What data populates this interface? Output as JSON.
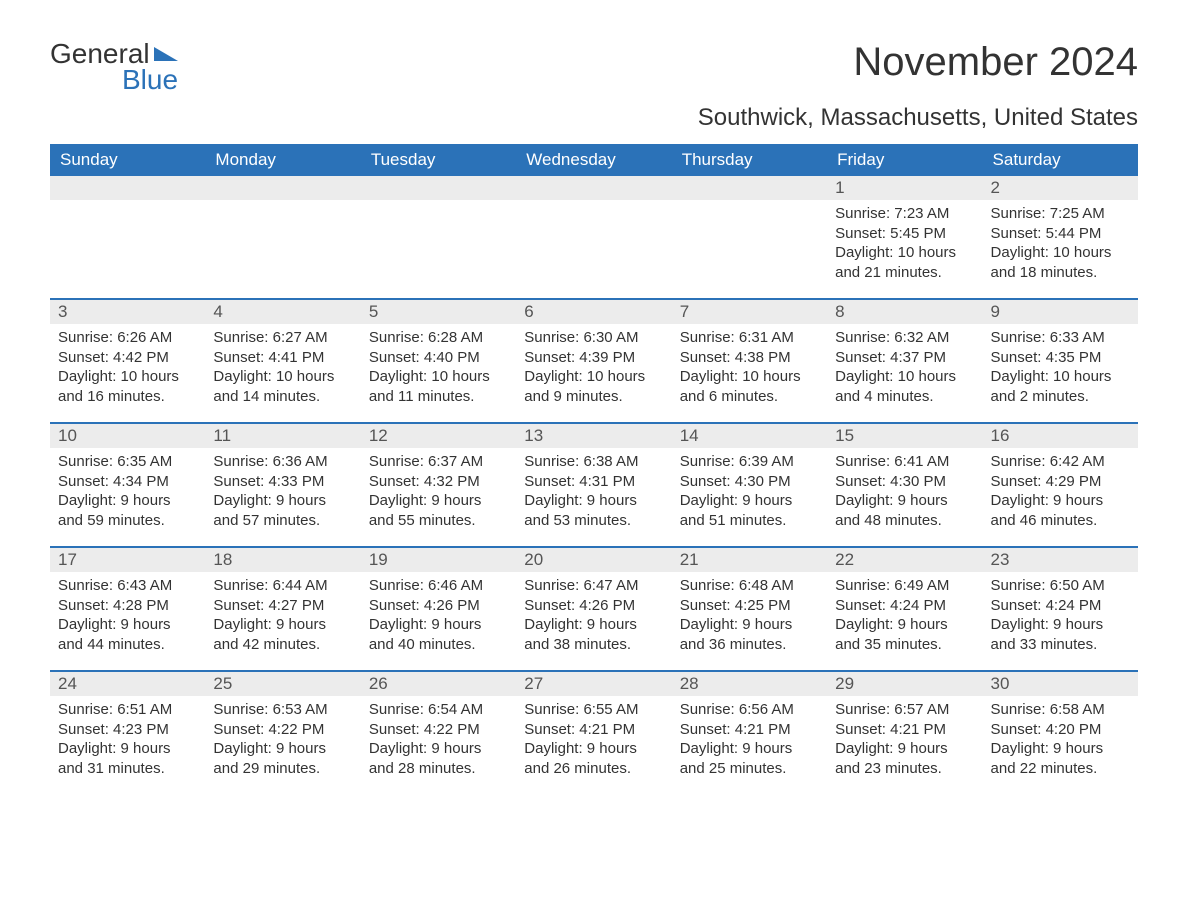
{
  "logo": {
    "word1": "General",
    "word2": "Blue"
  },
  "title": "November 2024",
  "location": "Southwick, Massachusetts, United States",
  "dayNames": [
    "Sunday",
    "Monday",
    "Tuesday",
    "Wednesday",
    "Thursday",
    "Friday",
    "Saturday"
  ],
  "colors": {
    "header_bg": "#2b72b8",
    "header_text": "#ffffff",
    "daynum_bg": "#ececec",
    "text": "#333333",
    "accent": "#2b72b8"
  },
  "weeks": [
    [
      {
        "blank": true
      },
      {
        "blank": true
      },
      {
        "blank": true
      },
      {
        "blank": true
      },
      {
        "blank": true
      },
      {
        "day": "1",
        "sunrise": "Sunrise: 7:23 AM",
        "sunset": "Sunset: 5:45 PM",
        "daylight1": "Daylight: 10 hours",
        "daylight2": "and 21 minutes."
      },
      {
        "day": "2",
        "sunrise": "Sunrise: 7:25 AM",
        "sunset": "Sunset: 5:44 PM",
        "daylight1": "Daylight: 10 hours",
        "daylight2": "and 18 minutes."
      }
    ],
    [
      {
        "day": "3",
        "sunrise": "Sunrise: 6:26 AM",
        "sunset": "Sunset: 4:42 PM",
        "daylight1": "Daylight: 10 hours",
        "daylight2": "and 16 minutes."
      },
      {
        "day": "4",
        "sunrise": "Sunrise: 6:27 AM",
        "sunset": "Sunset: 4:41 PM",
        "daylight1": "Daylight: 10 hours",
        "daylight2": "and 14 minutes."
      },
      {
        "day": "5",
        "sunrise": "Sunrise: 6:28 AM",
        "sunset": "Sunset: 4:40 PM",
        "daylight1": "Daylight: 10 hours",
        "daylight2": "and 11 minutes."
      },
      {
        "day": "6",
        "sunrise": "Sunrise: 6:30 AM",
        "sunset": "Sunset: 4:39 PM",
        "daylight1": "Daylight: 10 hours",
        "daylight2": "and 9 minutes."
      },
      {
        "day": "7",
        "sunrise": "Sunrise: 6:31 AM",
        "sunset": "Sunset: 4:38 PM",
        "daylight1": "Daylight: 10 hours",
        "daylight2": "and 6 minutes."
      },
      {
        "day": "8",
        "sunrise": "Sunrise: 6:32 AM",
        "sunset": "Sunset: 4:37 PM",
        "daylight1": "Daylight: 10 hours",
        "daylight2": "and 4 minutes."
      },
      {
        "day": "9",
        "sunrise": "Sunrise: 6:33 AM",
        "sunset": "Sunset: 4:35 PM",
        "daylight1": "Daylight: 10 hours",
        "daylight2": "and 2 minutes."
      }
    ],
    [
      {
        "day": "10",
        "sunrise": "Sunrise: 6:35 AM",
        "sunset": "Sunset: 4:34 PM",
        "daylight1": "Daylight: 9 hours",
        "daylight2": "and 59 minutes."
      },
      {
        "day": "11",
        "sunrise": "Sunrise: 6:36 AM",
        "sunset": "Sunset: 4:33 PM",
        "daylight1": "Daylight: 9 hours",
        "daylight2": "and 57 minutes."
      },
      {
        "day": "12",
        "sunrise": "Sunrise: 6:37 AM",
        "sunset": "Sunset: 4:32 PM",
        "daylight1": "Daylight: 9 hours",
        "daylight2": "and 55 minutes."
      },
      {
        "day": "13",
        "sunrise": "Sunrise: 6:38 AM",
        "sunset": "Sunset: 4:31 PM",
        "daylight1": "Daylight: 9 hours",
        "daylight2": "and 53 minutes."
      },
      {
        "day": "14",
        "sunrise": "Sunrise: 6:39 AM",
        "sunset": "Sunset: 4:30 PM",
        "daylight1": "Daylight: 9 hours",
        "daylight2": "and 51 minutes."
      },
      {
        "day": "15",
        "sunrise": "Sunrise: 6:41 AM",
        "sunset": "Sunset: 4:30 PM",
        "daylight1": "Daylight: 9 hours",
        "daylight2": "and 48 minutes."
      },
      {
        "day": "16",
        "sunrise": "Sunrise: 6:42 AM",
        "sunset": "Sunset: 4:29 PM",
        "daylight1": "Daylight: 9 hours",
        "daylight2": "and 46 minutes."
      }
    ],
    [
      {
        "day": "17",
        "sunrise": "Sunrise: 6:43 AM",
        "sunset": "Sunset: 4:28 PM",
        "daylight1": "Daylight: 9 hours",
        "daylight2": "and 44 minutes."
      },
      {
        "day": "18",
        "sunrise": "Sunrise: 6:44 AM",
        "sunset": "Sunset: 4:27 PM",
        "daylight1": "Daylight: 9 hours",
        "daylight2": "and 42 minutes."
      },
      {
        "day": "19",
        "sunrise": "Sunrise: 6:46 AM",
        "sunset": "Sunset: 4:26 PM",
        "daylight1": "Daylight: 9 hours",
        "daylight2": "and 40 minutes."
      },
      {
        "day": "20",
        "sunrise": "Sunrise: 6:47 AM",
        "sunset": "Sunset: 4:26 PM",
        "daylight1": "Daylight: 9 hours",
        "daylight2": "and 38 minutes."
      },
      {
        "day": "21",
        "sunrise": "Sunrise: 6:48 AM",
        "sunset": "Sunset: 4:25 PM",
        "daylight1": "Daylight: 9 hours",
        "daylight2": "and 36 minutes."
      },
      {
        "day": "22",
        "sunrise": "Sunrise: 6:49 AM",
        "sunset": "Sunset: 4:24 PM",
        "daylight1": "Daylight: 9 hours",
        "daylight2": "and 35 minutes."
      },
      {
        "day": "23",
        "sunrise": "Sunrise: 6:50 AM",
        "sunset": "Sunset: 4:24 PM",
        "daylight1": "Daylight: 9 hours",
        "daylight2": "and 33 minutes."
      }
    ],
    [
      {
        "day": "24",
        "sunrise": "Sunrise: 6:51 AM",
        "sunset": "Sunset: 4:23 PM",
        "daylight1": "Daylight: 9 hours",
        "daylight2": "and 31 minutes."
      },
      {
        "day": "25",
        "sunrise": "Sunrise: 6:53 AM",
        "sunset": "Sunset: 4:22 PM",
        "daylight1": "Daylight: 9 hours",
        "daylight2": "and 29 minutes."
      },
      {
        "day": "26",
        "sunrise": "Sunrise: 6:54 AM",
        "sunset": "Sunset: 4:22 PM",
        "daylight1": "Daylight: 9 hours",
        "daylight2": "and 28 minutes."
      },
      {
        "day": "27",
        "sunrise": "Sunrise: 6:55 AM",
        "sunset": "Sunset: 4:21 PM",
        "daylight1": "Daylight: 9 hours",
        "daylight2": "and 26 minutes."
      },
      {
        "day": "28",
        "sunrise": "Sunrise: 6:56 AM",
        "sunset": "Sunset: 4:21 PM",
        "daylight1": "Daylight: 9 hours",
        "daylight2": "and 25 minutes."
      },
      {
        "day": "29",
        "sunrise": "Sunrise: 6:57 AM",
        "sunset": "Sunset: 4:21 PM",
        "daylight1": "Daylight: 9 hours",
        "daylight2": "and 23 minutes."
      },
      {
        "day": "30",
        "sunrise": "Sunrise: 6:58 AM",
        "sunset": "Sunset: 4:20 PM",
        "daylight1": "Daylight: 9 hours",
        "daylight2": "and 22 minutes."
      }
    ]
  ]
}
